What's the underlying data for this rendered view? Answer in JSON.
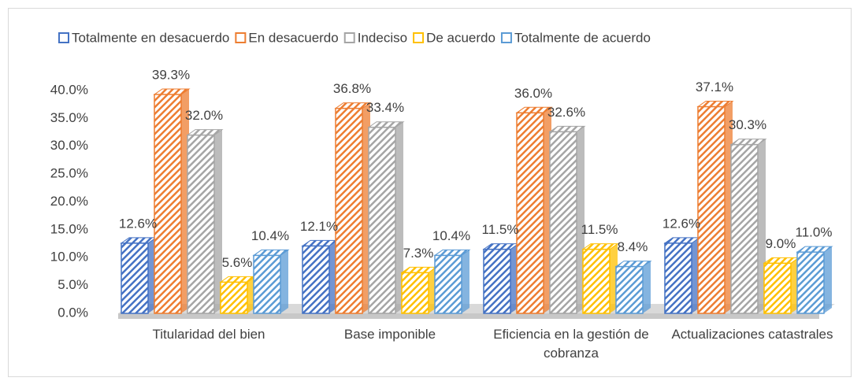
{
  "chart_data": {
    "type": "bar3d",
    "categories": [
      "Titularidad del bien",
      "Base imponible",
      "Eficiencia en la gestión de cobranza",
      "Actualizaciones catastrales"
    ],
    "series": [
      {
        "name": "Totalmente en desacuerdo",
        "color": "#4472c4",
        "values": [
          12.6,
          12.1,
          11.5,
          12.6
        ],
        "value_labels": [
          "12.6%",
          "12.1%",
          "11.5%",
          "12.6%"
        ]
      },
      {
        "name": "En desacuerdo",
        "color": "#ed7d31",
        "values": [
          39.3,
          36.8,
          36.0,
          37.1
        ],
        "value_labels": [
          "39.3%",
          "36.8%",
          "36.0%",
          "37.1%"
        ]
      },
      {
        "name": "Indeciso",
        "color": "#a5a5a5",
        "values": [
          32.0,
          33.4,
          32.6,
          30.3
        ],
        "value_labels": [
          "32.0%",
          "33.4%",
          "32.6%",
          "30.3%"
        ]
      },
      {
        "name": "De acuerdo",
        "color": "#ffc000",
        "values": [
          5.6,
          7.3,
          11.5,
          9.0
        ],
        "value_labels": [
          "5.6%",
          "7.3%",
          "11.5%",
          "9.0%"
        ]
      },
      {
        "name": "Totalmente de acuerdo",
        "color": "#5b9bd5",
        "values": [
          10.4,
          10.4,
          8.4,
          11.0
        ],
        "value_labels": [
          "10.4%",
          "10.4%",
          "8.4%",
          "11.0%"
        ]
      }
    ],
    "ylim": [
      0,
      40
    ],
    "yticks": [
      {
        "value": 0,
        "label": "0.0%"
      },
      {
        "value": 5,
        "label": "5.0%"
      },
      {
        "value": 10,
        "label": "10.0%"
      },
      {
        "value": 15,
        "label": "15.0%"
      },
      {
        "value": 20,
        "label": "20.0%"
      },
      {
        "value": 25,
        "label": "25.0%"
      },
      {
        "value": 30,
        "label": "30.0%"
      },
      {
        "value": 35,
        "label": "35.0%"
      },
      {
        "value": 40,
        "label": "40.0%"
      }
    ],
    "legend": "top"
  }
}
